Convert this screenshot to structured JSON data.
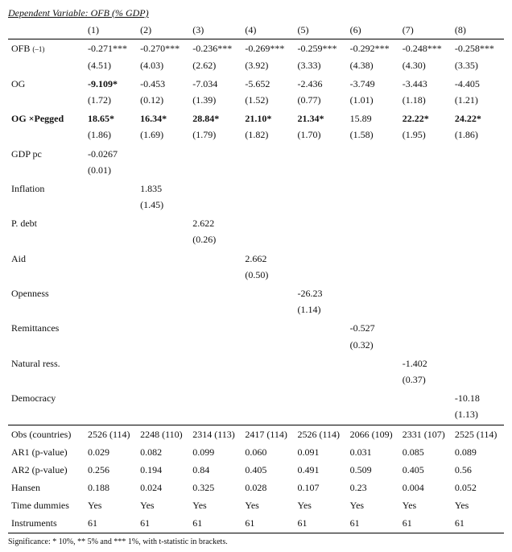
{
  "title": "Dependent Variable: OFB (% GDP)",
  "col_headers": [
    "(1)",
    "(2)",
    "(3)",
    "(4)",
    "(5)",
    "(6)",
    "(7)",
    "(8)"
  ],
  "rows": {
    "ofb_label_pre": "OFB ",
    "ofb_label_sub": "(–1)",
    "ofb": [
      "-0.271***",
      "-0.270***",
      "-0.236***",
      "-0.269***",
      "-0.259***",
      "-0.292***",
      "-0.248***",
      "-0.258***"
    ],
    "ofb_p": [
      "(4.51)",
      "(4.03)",
      "(2.62)",
      "(3.92)",
      "(3.33)",
      "(4.38)",
      "(4.30)",
      "(3.35)"
    ],
    "og_label": "OG",
    "og": [
      "-9.109*",
      "-0.453",
      "-7.034",
      "-5.652",
      "-2.436",
      "-3.749",
      "-3.443",
      "-4.405"
    ],
    "og_bold": [
      true,
      false,
      false,
      false,
      false,
      false,
      false,
      false
    ],
    "og_p": [
      "(1.72)",
      "(0.12)",
      "(1.39)",
      "(1.52)",
      "(0.77)",
      "(1.01)",
      "(1.18)",
      "(1.21)"
    ],
    "ogp_label": "OG ×Pegged",
    "ogp": [
      "18.65*",
      "16.34*",
      "28.84*",
      "21.10*",
      "21.34*",
      "15.89",
      "22.22*",
      "24.22*"
    ],
    "ogp_bold": [
      true,
      true,
      true,
      true,
      true,
      false,
      true,
      true
    ],
    "ogp_p": [
      "(1.86)",
      "(1.69)",
      "(1.79)",
      "(1.82)",
      "(1.70)",
      "(1.58)",
      "(1.95)",
      "(1.86)"
    ],
    "gdp_label": "GDP pc",
    "gdp_val": "-0.0267",
    "gdp_p": "(0.01)",
    "infl_label": "Inflation",
    "infl_val": "1.835",
    "infl_p": "(1.45)",
    "debt_label": "P. debt",
    "debt_val": "2.622",
    "debt_p": "(0.26)",
    "aid_label": "Aid",
    "aid_val": "2.662",
    "aid_p": "(0.50)",
    "open_label": "Openness",
    "open_val": "-26.23",
    "open_p": "(1.14)",
    "rem_label": "Remittances",
    "rem_val": "-0.527",
    "rem_p": "(0.32)",
    "nat_label": "Natural ress.",
    "nat_val": "-1.402",
    "nat_p": "(0.37)",
    "dem_label": "Democracy",
    "dem_val": "-10.18",
    "dem_p": "(1.13)",
    "obs_label": "Obs (countries)",
    "obs": [
      "2526 (114)",
      "2248 (110)",
      "2314 (113)",
      "2417 (114)",
      "2526 (114)",
      "2066 (109)",
      "2331 (107)",
      "2525 (114)"
    ],
    "ar1_label": "AR1 (p-value)",
    "ar1": [
      "0.029",
      "0.082",
      "0.099",
      "0.060",
      "0.091",
      "0.031",
      "0.085",
      "0.089"
    ],
    "ar2_label": "AR2 (p-value)",
    "ar2": [
      "0.256",
      "0.194",
      "0.84",
      "0.405",
      "0.491",
      "0.509",
      "0.405",
      "0.56"
    ],
    "hansen_label": "Hansen",
    "hansen": [
      "0.188",
      "0.024",
      "0.325",
      "0.028",
      "0.107",
      "0.23",
      "0.004",
      "0.052"
    ],
    "td_label": "Time dummies",
    "td": [
      "Yes",
      "Yes",
      "Yes",
      "Yes",
      "Yes",
      "Yes",
      "Yes",
      "Yes"
    ],
    "inst_label": "Instruments",
    "inst": [
      "61",
      "61",
      "61",
      "61",
      "61",
      "61",
      "61",
      "61"
    ]
  },
  "footnote": "Significance: * 10%, ** 5% and *** 1%, with t-statistic in brackets.",
  "style": {
    "font_family": "Times New Roman",
    "font_size_pt": 9,
    "title_italic": true,
    "title_underline": true,
    "border_color": "#000000",
    "text_color": "#111111",
    "background_color": "#ffffff"
  }
}
